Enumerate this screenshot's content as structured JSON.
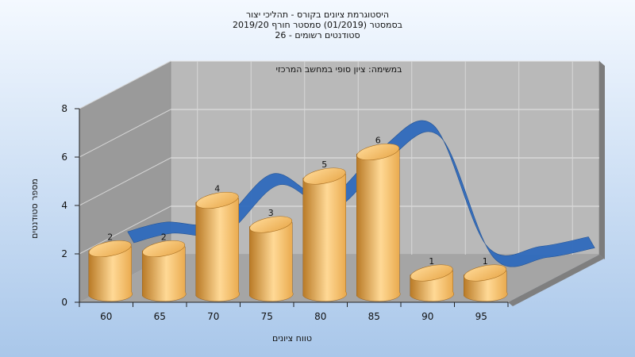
{
  "chart_data": {
    "type": "bar",
    "title_lines": [
      "היסטוגרמת ציונים בקורס - תהליכי יצור",
      "בסמסטר  (01/2019)  סמסטר חורף 2019/20",
      "סטודנטים רשומים - 26"
    ],
    "annotation": "במשימה: ציון סופי במחשב המרכזי",
    "xlabel": "טווח ציונים",
    "ylabel": "מספר סטודנטים",
    "categories": [
      "60",
      "65",
      "70",
      "75",
      "80",
      "85",
      "90",
      "95"
    ],
    "values": [
      2,
      2,
      4,
      3,
      5,
      6,
      1,
      1
    ],
    "ylim": [
      0,
      8
    ],
    "yticks": [
      "0",
      "2",
      "4",
      "6",
      "8"
    ],
    "grid": true,
    "trend_line": true,
    "colors": {
      "bar": "#e9a94c",
      "bar_dark": "#b97a26",
      "bar_light": "#ffd996",
      "trend": "#2f6bbd",
      "back_wall": "#b9b9b9",
      "side_wall": "#9a9a9a",
      "floor": "#a5a5a5",
      "background_top": "#f4f9ff",
      "background_bottom": "#a9c7ea"
    }
  }
}
